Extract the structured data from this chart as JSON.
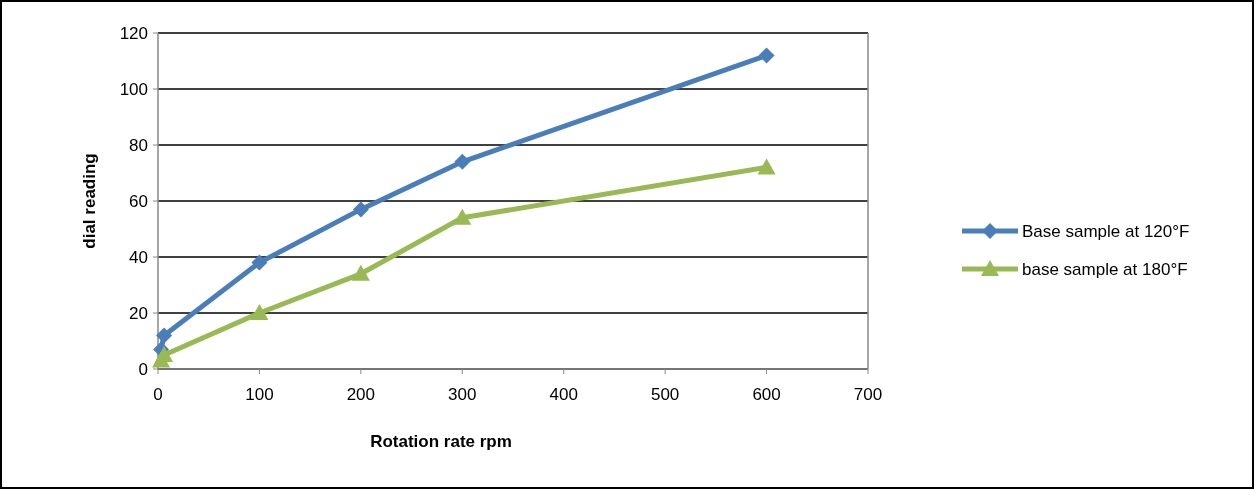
{
  "chart_data": {
    "type": "line",
    "xlabel": "Rotation rate rpm",
    "ylabel": "dial reading",
    "xlim": [
      0,
      700
    ],
    "xticks": [
      0,
      100,
      200,
      300,
      400,
      500,
      600,
      700
    ],
    "ylim": [
      0,
      120
    ],
    "yticks": [
      0,
      20,
      40,
      60,
      80,
      100,
      120
    ],
    "grid": "y",
    "legend": "right",
    "series": [
      {
        "name": "Base sample at 120°F",
        "color": "#4a7ebb",
        "marker": "diamond",
        "x": [
          3,
          6,
          100,
          200,
          300,
          600
        ],
        "values": [
          7,
          12,
          38,
          57,
          74,
          112
        ]
      },
      {
        "name": "base sample at 180°F",
        "color": "#98b954",
        "marker": "triangle",
        "x": [
          3,
          6,
          100,
          200,
          300,
          600
        ],
        "values": [
          3,
          5,
          20,
          34,
          54,
          72
        ]
      }
    ]
  }
}
